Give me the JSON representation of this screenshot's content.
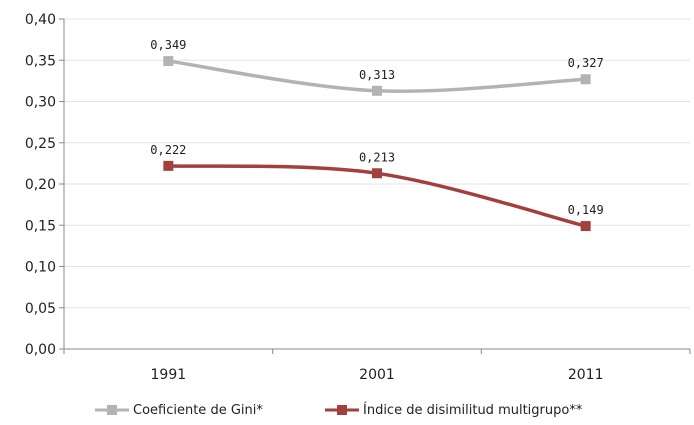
{
  "chart_data": {
    "type": "line",
    "categories": [
      "1991",
      "2001",
      "2011"
    ],
    "ylim": [
      0,
      0.4
    ],
    "yticks": [
      "0,00",
      "0,05",
      "0,10",
      "0,15",
      "0,20",
      "0,25",
      "0,30",
      "0,35",
      "0,40"
    ],
    "grid": true,
    "legend_position": "bottom",
    "series": [
      {
        "name": "Coeficiente de Gini*",
        "values": [
          0.349,
          0.313,
          0.327
        ],
        "labels": [
          "0,349",
          "0,313",
          "0,327"
        ],
        "color": "#b3b3b3"
      },
      {
        "name": "Índice de disimilitud multigrupo**",
        "values": [
          0.222,
          0.213,
          0.149
        ],
        "labels": [
          "0,222",
          "0,213",
          "0,149"
        ],
        "color": "#a3403d"
      }
    ]
  }
}
